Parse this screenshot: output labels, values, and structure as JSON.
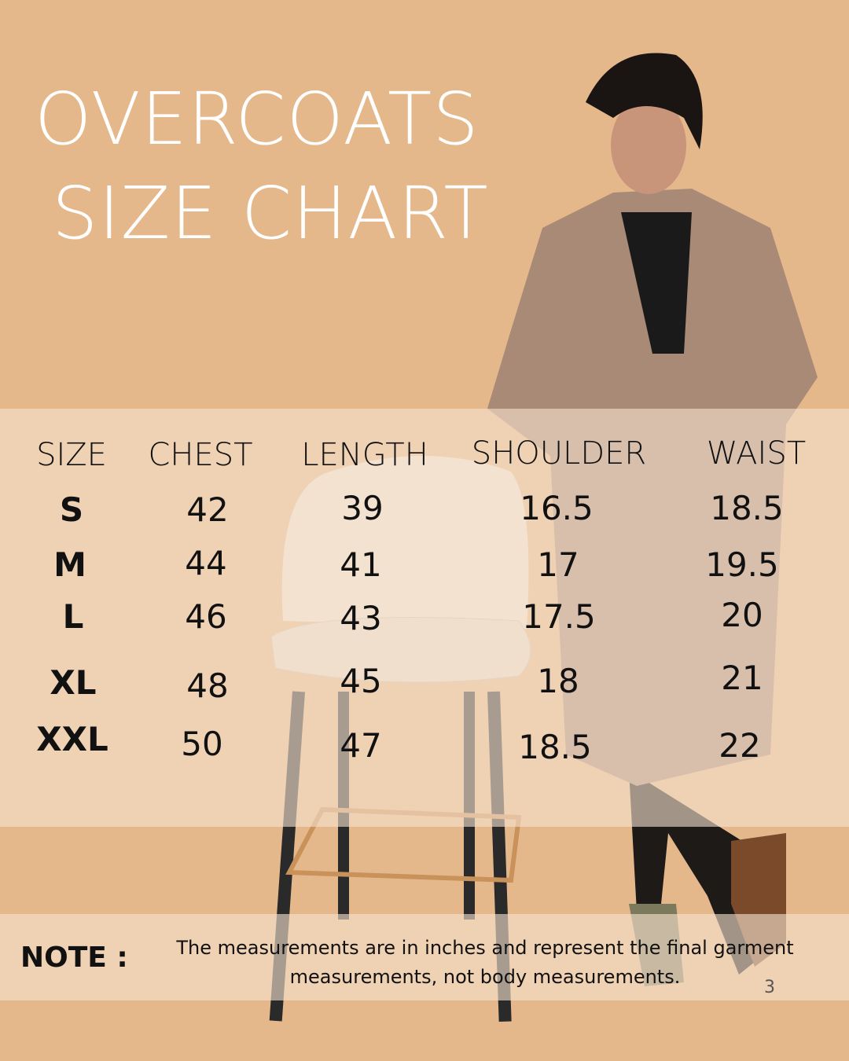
{
  "title": {
    "line1": "OVERCOATS",
    "line2": "SIZE CHART"
  },
  "colors": {
    "background": "#E5B88B",
    "band": "#F0D6BC",
    "text": "#111111",
    "title": "#FFFFFF"
  },
  "table": {
    "headers": [
      "SIZE",
      "CHEST",
      "LENGTH",
      "SHOULDER",
      "WAIST"
    ],
    "rows": [
      [
        "S",
        "42",
        "39",
        "16.5",
        "18.5"
      ],
      [
        "M",
        "44",
        "41",
        "17",
        "19.5"
      ],
      [
        "L",
        "46",
        "43",
        "17.5",
        "20"
      ],
      [
        "XL",
        "48",
        "45",
        "18",
        "21"
      ],
      [
        "XXL",
        "50",
        "47",
        "18.5",
        "22"
      ]
    ]
  },
  "note": {
    "label": "NOTE :",
    "text": "The measurements are in inches and represent the final garment measurements, not body measurements."
  },
  "page_number": "3"
}
